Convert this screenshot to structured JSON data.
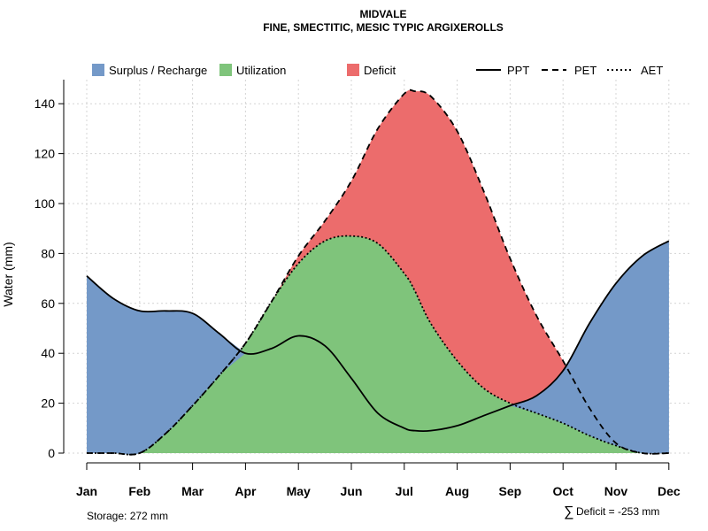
{
  "chart_data": {
    "type": "area",
    "title": "MIDVALE",
    "subtitle": "FINE, SMECTITIC, MESIC TYPIC ARGIXEROLLS",
    "ylabel": "Water (mm)",
    "xlabel": "",
    "ylim": [
      0,
      150
    ],
    "yticks": [
      0,
      20,
      40,
      60,
      80,
      100,
      120,
      140
    ],
    "categories": [
      "Jan",
      "Feb",
      "Mar",
      "Apr",
      "May",
      "Jun",
      "Jul",
      "Aug",
      "Sep",
      "Oct",
      "Nov",
      "Dec"
    ],
    "x": [
      1,
      1.5,
      2,
      2.5,
      3,
      3.5,
      4,
      4.5,
      5,
      5.5,
      6,
      6.5,
      7,
      7.2,
      7.5,
      8,
      8.5,
      9,
      9.5,
      10,
      10.5,
      11,
      11.5,
      12
    ],
    "series": [
      {
        "name": "PPT",
        "style": "solid",
        "values": [
          71,
          62,
          57,
          57,
          56,
          48,
          40,
          42,
          47,
          43,
          30,
          16,
          10,
          9,
          9,
          11,
          15,
          19,
          23,
          33,
          52,
          68,
          79,
          85
        ]
      },
      {
        "name": "PET",
        "style": "dashed",
        "values": [
          0,
          0,
          0,
          8,
          19,
          31,
          44,
          61,
          79,
          93,
          109,
          130,
          144,
          145,
          143,
          129,
          105,
          78,
          55,
          37,
          18,
          4,
          0,
          0
        ]
      },
      {
        "name": "AET",
        "style": "dotted",
        "values": [
          0,
          0,
          0,
          8,
          19,
          31,
          44,
          61,
          76,
          85,
          87,
          84,
          72,
          65,
          52,
          37,
          26,
          20,
          16,
          12,
          7,
          3,
          0,
          0
        ]
      }
    ],
    "legend": {
      "placement": "top",
      "fills": [
        {
          "label": "Surplus / Recharge",
          "color": "#7499c8"
        },
        {
          "label": "Utilization",
          "color": "#7fc47b"
        },
        {
          "label": "Deficit",
          "color": "#ec6c6c"
        }
      ],
      "lines": [
        {
          "label": "PPT",
          "style": "solid"
        },
        {
          "label": "PET",
          "style": "dashed"
        },
        {
          "label": "AET",
          "style": "dotted"
        }
      ]
    },
    "grid": true,
    "annotations": {
      "storage": "Storage: 272 mm",
      "deficit_symbol": "∑",
      "deficit": "Deficit = -253 mm"
    }
  }
}
